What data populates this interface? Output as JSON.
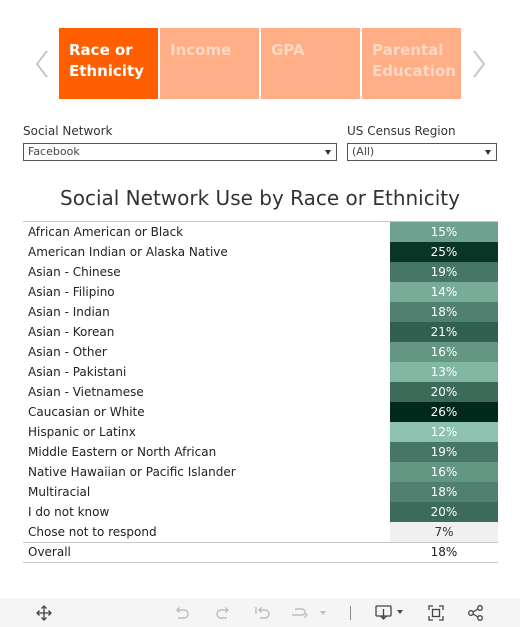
{
  "tabs": [
    {
      "label_line1": "Race or",
      "label_line2": "Ethnicity",
      "active": true
    },
    {
      "label_line1": "Income",
      "label_line2": "",
      "active": false
    },
    {
      "label_line1": "GPA",
      "label_line2": "",
      "active": false
    },
    {
      "label_line1": "Parental",
      "label_line2": "Education",
      "active": false
    }
  ],
  "filters": {
    "network": {
      "label": "Social Network",
      "value": "Facebook"
    },
    "region": {
      "label": "US Census Region",
      "value": "(All)"
    }
  },
  "title": "Social Network Use by Race or Ethnicity",
  "rows": [
    {
      "label": "African American or Black",
      "value": "15%",
      "pct": 15
    },
    {
      "label": "American Indian or Alaska Native",
      "value": "25%",
      "pct": 25
    },
    {
      "label": "Asian - Chinese",
      "value": "19%",
      "pct": 19
    },
    {
      "label": "Asian - Filipino",
      "value": "14%",
      "pct": 14
    },
    {
      "label": "Asian - Indian",
      "value": "18%",
      "pct": 18
    },
    {
      "label": "Asian - Korean",
      "value": "21%",
      "pct": 21
    },
    {
      "label": "Asian - Other",
      "value": "16%",
      "pct": 16
    },
    {
      "label": "Asian - Pakistani",
      "value": "13%",
      "pct": 13
    },
    {
      "label": "Asian - Vietnamese",
      "value": "20%",
      "pct": 20
    },
    {
      "label": "Caucasian or White",
      "value": "26%",
      "pct": 26
    },
    {
      "label": "Hispanic or Latinx",
      "value": "12%",
      "pct": 12
    },
    {
      "label": "Middle Eastern or North African",
      "value": "19%",
      "pct": 19
    },
    {
      "label": "Native Hawaiian or Pacific Islander",
      "value": "16%",
      "pct": 16
    },
    {
      "label": "Multiracial",
      "value": "18%",
      "pct": 18
    },
    {
      "label": "I do not know",
      "value": "20%",
      "pct": 20
    },
    {
      "label": "Chose not to respond",
      "value": "7%",
      "pct": 7,
      "muted": true
    }
  ],
  "overall": {
    "label": "Overall",
    "value": "18%"
  },
  "colors": {
    "tab_active": "#ff5f00",
    "tab_inactive": "#ffae85",
    "heat_light": "#8cc2ae",
    "heat_dark": "#00291b",
    "muted_cell": "#f0f0f0"
  },
  "heat_range": [
    12,
    26
  ],
  "toolbar": {
    "icons": [
      "move-icon",
      "undo-icon",
      "redo-icon",
      "revert-icon",
      "refresh-icon",
      "download-icon",
      "fullscreen-icon",
      "share-icon"
    ]
  }
}
